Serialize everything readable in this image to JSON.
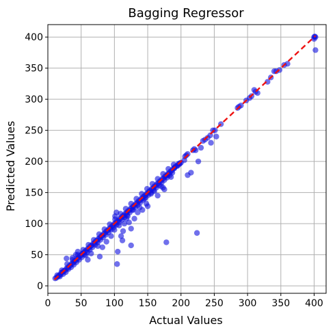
{
  "chart_data": {
    "type": "scatter",
    "title": "Bagging Regressor",
    "xlabel": "Actual Values",
    "ylabel": "Predicted Values",
    "xlim": [
      0,
      418
    ],
    "ylim": [
      -12,
      420
    ],
    "x_ticks": [
      0,
      50,
      100,
      150,
      200,
      250,
      300,
      350,
      400
    ],
    "y_ticks": [
      0,
      50,
      100,
      150,
      200,
      250,
      300,
      350,
      400
    ],
    "grid": true,
    "point_color": "#1010e0",
    "reference_line": {
      "from": [
        10,
        10
      ],
      "to": [
        402,
        402
      ],
      "color": "#ee1111",
      "style": "dashed"
    },
    "points": [
      [
        11,
        12
      ],
      [
        13,
        13
      ],
      [
        15,
        15
      ],
      [
        17,
        17
      ],
      [
        19,
        18
      ],
      [
        20,
        21
      ],
      [
        22,
        22
      ],
      [
        24,
        24
      ],
      [
        26,
        25
      ],
      [
        28,
        28
      ],
      [
        30,
        29
      ],
      [
        32,
        32
      ],
      [
        34,
        33
      ],
      [
        36,
        36
      ],
      [
        38,
        37
      ],
      [
        40,
        40
      ],
      [
        42,
        41
      ],
      [
        44,
        44
      ],
      [
        46,
        45
      ],
      [
        48,
        48
      ],
      [
        50,
        49
      ],
      [
        52,
        52
      ],
      [
        54,
        53
      ],
      [
        56,
        56
      ],
      [
        58,
        57
      ],
      [
        60,
        60
      ],
      [
        62,
        61
      ],
      [
        64,
        64
      ],
      [
        66,
        65
      ],
      [
        68,
        68
      ],
      [
        70,
        69
      ],
      [
        72,
        72
      ],
      [
        74,
        73
      ],
      [
        76,
        76
      ],
      [
        78,
        77
      ],
      [
        80,
        80
      ],
      [
        82,
        81
      ],
      [
        84,
        84
      ],
      [
        86,
        85
      ],
      [
        88,
        88
      ],
      [
        90,
        89
      ],
      [
        92,
        92
      ],
      [
        94,
        93
      ],
      [
        96,
        96
      ],
      [
        98,
        97
      ],
      [
        100,
        100
      ],
      [
        102,
        101
      ],
      [
        104,
        104
      ],
      [
        106,
        105
      ],
      [
        108,
        108
      ],
      [
        110,
        109
      ],
      [
        112,
        112
      ],
      [
        114,
        113
      ],
      [
        116,
        116
      ],
      [
        118,
        117
      ],
      [
        120,
        120
      ],
      [
        122,
        121
      ],
      [
        124,
        124
      ],
      [
        126,
        125
      ],
      [
        128,
        128
      ],
      [
        130,
        129
      ],
      [
        132,
        132
      ],
      [
        134,
        133
      ],
      [
        136,
        136
      ],
      [
        138,
        137
      ],
      [
        140,
        140
      ],
      [
        142,
        141
      ],
      [
        144,
        144
      ],
      [
        146,
        145
      ],
      [
        148,
        148
      ],
      [
        150,
        149
      ],
      [
        152,
        152
      ],
      [
        154,
        153
      ],
      [
        156,
        156
      ],
      [
        158,
        157
      ],
      [
        160,
        160
      ],
      [
        162,
        161
      ],
      [
        164,
        164
      ],
      [
        166,
        165
      ],
      [
        168,
        168
      ],
      [
        170,
        169
      ],
      [
        172,
        172
      ],
      [
        174,
        173
      ],
      [
        176,
        176
      ],
      [
        178,
        177
      ],
      [
        180,
        180
      ],
      [
        182,
        181
      ],
      [
        184,
        184
      ],
      [
        186,
        185
      ],
      [
        188,
        188
      ],
      [
        190,
        189
      ],
      [
        192,
        192
      ],
      [
        194,
        193
      ],
      [
        196,
        196
      ],
      [
        198,
        197
      ],
      [
        18,
        15
      ],
      [
        23,
        19
      ],
      [
        27,
        22
      ],
      [
        31,
        27
      ],
      [
        35,
        30
      ],
      [
        39,
        34
      ],
      [
        43,
        38
      ],
      [
        47,
        42
      ],
      [
        51,
        46
      ],
      [
        55,
        50
      ],
      [
        59,
        54
      ],
      [
        63,
        58
      ],
      [
        67,
        62
      ],
      [
        71,
        66
      ],
      [
        75,
        70
      ],
      [
        79,
        74
      ],
      [
        83,
        78
      ],
      [
        87,
        82
      ],
      [
        91,
        86
      ],
      [
        95,
        90
      ],
      [
        99,
        94
      ],
      [
        103,
        98
      ],
      [
        107,
        102
      ],
      [
        111,
        106
      ],
      [
        115,
        110
      ],
      [
        119,
        114
      ],
      [
        123,
        118
      ],
      [
        127,
        122
      ],
      [
        131,
        126
      ],
      [
        135,
        130
      ],
      [
        139,
        134
      ],
      [
        143,
        138
      ],
      [
        147,
        142
      ],
      [
        151,
        146
      ],
      [
        155,
        150
      ],
      [
        159,
        154
      ],
      [
        163,
        158
      ],
      [
        167,
        162
      ],
      [
        171,
        166
      ],
      [
        175,
        170
      ],
      [
        179,
        174
      ],
      [
        183,
        178
      ],
      [
        187,
        182
      ],
      [
        14,
        17
      ],
      [
        21,
        25
      ],
      [
        29,
        35
      ],
      [
        37,
        42
      ],
      [
        45,
        50
      ],
      [
        53,
        58
      ],
      [
        61,
        66
      ],
      [
        69,
        74
      ],
      [
        77,
        83
      ],
      [
        85,
        91
      ],
      [
        93,
        99
      ],
      [
        101,
        107
      ],
      [
        109,
        116
      ],
      [
        117,
        124
      ],
      [
        125,
        132
      ],
      [
        133,
        140
      ],
      [
        141,
        148
      ],
      [
        149,
        156
      ],
      [
        157,
        164
      ],
      [
        165,
        172
      ],
      [
        173,
        180
      ],
      [
        181,
        188
      ],
      [
        189,
        195
      ],
      [
        28,
        44
      ],
      [
        37,
        45
      ],
      [
        42,
        50
      ],
      [
        45,
        55
      ],
      [
        52,
        52
      ],
      [
        57,
        49
      ],
      [
        60,
        42
      ],
      [
        65,
        52
      ],
      [
        75,
        64
      ],
      [
        78,
        47
      ],
      [
        82,
        62
      ],
      [
        88,
        71
      ],
      [
        95,
        80
      ],
      [
        100,
        90
      ],
      [
        101,
        112
      ],
      [
        103,
        118
      ],
      [
        104,
        35
      ],
      [
        105,
        55
      ],
      [
        107,
        97
      ],
      [
        110,
        80
      ],
      [
        112,
        73
      ],
      [
        113,
        88
      ],
      [
        115,
        100
      ],
      [
        118,
        108
      ],
      [
        120,
        112
      ],
      [
        122,
        102
      ],
      [
        125,
        92
      ],
      [
        125,
        65
      ],
      [
        128,
        122
      ],
      [
        130,
        108
      ],
      [
        135,
        118
      ],
      [
        138,
        126
      ],
      [
        142,
        122
      ],
      [
        145,
        140
      ],
      [
        148,
        132
      ],
      [
        150,
        128
      ],
      [
        155,
        148
      ],
      [
        160,
        152
      ],
      [
        165,
        145
      ],
      [
        170,
        160
      ],
      [
        173,
        158
      ],
      [
        175,
        155
      ],
      [
        178,
        70
      ],
      [
        180,
        178
      ],
      [
        185,
        175
      ],
      [
        190,
        190
      ],
      [
        195,
        193
      ],
      [
        198,
        196
      ],
      [
        200,
        198
      ],
      [
        205,
        202
      ],
      [
        206,
        208
      ],
      [
        208,
        210
      ],
      [
        210,
        212
      ],
      [
        210,
        178
      ],
      [
        215,
        182
      ],
      [
        218,
        218
      ],
      [
        220,
        220
      ],
      [
        222,
        218
      ],
      [
        224,
        85
      ],
      [
        226,
        200
      ],
      [
        230,
        222
      ],
      [
        233,
        233
      ],
      [
        236,
        235
      ],
      [
        240,
        238
      ],
      [
        244,
        242
      ],
      [
        245,
        230
      ],
      [
        248,
        250
      ],
      [
        251,
        250
      ],
      [
        253,
        240
      ],
      [
        260,
        260
      ],
      [
        285,
        286
      ],
      [
        287,
        288
      ],
      [
        290,
        290
      ],
      [
        298,
        298
      ],
      [
        303,
        302
      ],
      [
        306,
        305
      ],
      [
        310,
        315
      ],
      [
        312,
        312
      ],
      [
        315,
        310
      ],
      [
        330,
        328
      ],
      [
        335,
        335
      ],
      [
        340,
        345
      ],
      [
        343,
        345
      ],
      [
        348,
        347
      ],
      [
        355,
        355
      ],
      [
        360,
        357
      ],
      [
        400,
        400
      ],
      [
        401,
        401
      ],
      [
        402,
        400
      ],
      [
        400,
        397
      ],
      [
        402,
        379
      ]
    ]
  }
}
